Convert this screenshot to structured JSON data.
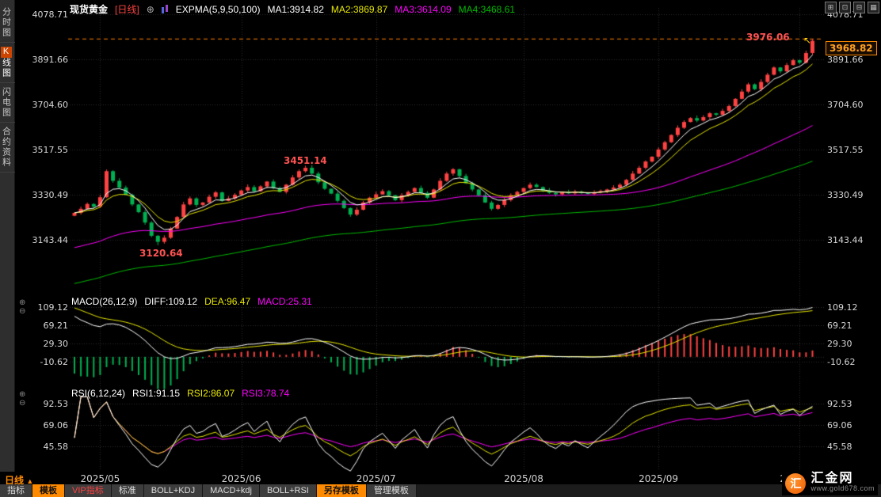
{
  "header": {
    "symbol": "现货黄金",
    "period": "[日线]",
    "plus_icon": "⊕",
    "indicator": "EXPMA(5,9,50,100)",
    "ma1": "MA1:3914.82",
    "ma2": "MA2:3869.87",
    "ma3": "MA3:3614.09",
    "ma4": "MA4:3468.61",
    "window_icons": [
      {
        "name": "grid-layout-icon",
        "glyph": "⊞"
      },
      {
        "name": "split-layout-icon",
        "glyph": "⊡"
      },
      {
        "name": "compress-panels-icon",
        "glyph": "⊟"
      },
      {
        "name": "panel-list-icon",
        "glyph": "▦"
      }
    ]
  },
  "sidebar": {
    "items": [
      {
        "label": "分时图",
        "active": false
      },
      {
        "label": "K线图",
        "prefix": "K",
        "rest": "线图",
        "active": true
      },
      {
        "label": "闪电图",
        "active": false
      },
      {
        "label": "合约资料",
        "active": false
      }
    ]
  },
  "macd_header": {
    "title": "MACD(26,12,9)",
    "diff": "DIFF:109.12",
    "dea": "DEA:96.47",
    "macd": "MACD:25.31",
    "zoom_in": "⊕",
    "zoom_out": "⊖"
  },
  "rsi_header": {
    "title": "RSI(6,12,24)",
    "rsi1": "RSI1:91.15",
    "rsi2": "RSI2:86.07",
    "rsi3": "RSI3:78.74",
    "zoom_in": "⊕",
    "zoom_out": "⊖"
  },
  "axis": {
    "price_labels": [
      "4078.71",
      "3891.66",
      "3704.60",
      "3517.55",
      "3330.49",
      "3143.44"
    ],
    "macd_labels": [
      "109.12",
      "69.21",
      "29.30",
      "-10.62"
    ],
    "rsi_labels": [
      "92.53",
      "69.06",
      "45.58"
    ]
  },
  "annotations": {
    "session_high": "3976.06",
    "last_price": "3968.82",
    "june_high": "3451.14",
    "may_low": "3120.64",
    "marker": "↖"
  },
  "xaxis_row": {
    "period_label": "日线",
    "arrow": "▲"
  },
  "toolbar": {
    "tabs": [
      {
        "label": "指标",
        "style": "plain"
      },
      {
        "label": "模板",
        "style": "active"
      },
      {
        "label": "VIP指标",
        "style": "vip"
      },
      {
        "label": "标准",
        "style": "plain"
      },
      {
        "label": "BOLL+KDJ",
        "style": "plain"
      },
      {
        "label": "MACD+kdj",
        "style": "plain"
      },
      {
        "label": "BOLL+RSI",
        "style": "plain"
      },
      {
        "label": "另存模板",
        "style": "save"
      },
      {
        "label": "管理模板",
        "style": "plain"
      }
    ]
  },
  "branding": {
    "logo_char": "汇",
    "name": "汇金网",
    "url": "www.gold678.com"
  },
  "colors": {
    "up": "#ff4242",
    "down": "#00b050",
    "ma1": "#ffffff",
    "ma2": "#e8e800",
    "ma3": "#ff00ff",
    "ma4": "#00bb00",
    "accent": "#ff8a00",
    "annotation": "#ff5252",
    "dashed_line": "#ff7e00",
    "grid": "#2c2c2c"
  },
  "chart_data": {
    "type": "candlestick",
    "symbol": "现货黄金",
    "period": "日线",
    "panels": [
      "price+EXPMA(5,9,50,100)",
      "MACD(26,12,9)",
      "RSI(6,12,24)"
    ],
    "x_axis": {
      "labels": [
        "2025/05",
        "2025/06",
        "2025/07",
        "2025/08",
        "2025/09",
        "2025/10"
      ],
      "month_start_index": [
        4,
        26,
        47,
        70,
        91,
        113
      ]
    },
    "y_ticks": [
      4078.71,
      3891.66,
      3704.6,
      3517.55,
      3330.49,
      3143.44
    ],
    "macd_ticks": [
      109.12,
      69.21,
      29.3,
      -10.62
    ],
    "rsi_ticks": [
      92.53,
      69.06,
      45.58
    ],
    "expma_periods": [
      5,
      9,
      50,
      100
    ],
    "macd_params": [
      26,
      12,
      9
    ],
    "rsi_params": [
      6,
      12,
      24
    ],
    "closes": [
      3255,
      3272,
      3292,
      3281,
      3320,
      3428,
      3388,
      3360,
      3330,
      3290,
      3258,
      3215,
      3160,
      3135,
      3152,
      3190,
      3238,
      3290,
      3315,
      3288,
      3298,
      3322,
      3340,
      3305,
      3315,
      3330,
      3348,
      3362,
      3345,
      3365,
      3385,
      3358,
      3342,
      3372,
      3402,
      3428,
      3442,
      3418,
      3382,
      3355,
      3335,
      3305,
      3275,
      3248,
      3268,
      3298,
      3318,
      3332,
      3345,
      3328,
      3308,
      3328,
      3342,
      3358,
      3338,
      3318,
      3352,
      3388,
      3418,
      3436,
      3408,
      3378,
      3352,
      3328,
      3298,
      3272,
      3288,
      3308,
      3328,
      3342,
      3358,
      3372,
      3362,
      3348,
      3338,
      3332,
      3340,
      3336,
      3343,
      3338,
      3334,
      3340,
      3346,
      3352,
      3360,
      3372,
      3392,
      3418,
      3442,
      3468,
      3488,
      3518,
      3548,
      3578,
      3608,
      3632,
      3648,
      3638,
      3652,
      3668,
      3662,
      3678,
      3698,
      3728,
      3758,
      3788,
      3768,
      3798,
      3828,
      3858,
      3842,
      3868,
      3888,
      3878,
      3918,
      3968.82
    ],
    "candle_overrides": {
      "13": {
        "low": 3120.64
      },
      "36": {
        "high": 3451.14
      },
      "115": {
        "high": 3976.06
      }
    },
    "indicator_seeds": {
      "ema50": 3105,
      "ema100": 2956,
      "ema12": 3300,
      "ema26": 3200,
      "dea": 112
    },
    "key_values": {
      "last_close": 3968.82,
      "session_high": 3976.06,
      "swing_high": 3451.14,
      "swing_low": 3120.64,
      "ema5": 3914.82,
      "ema9": 3869.87,
      "ema50": 3614.09,
      "ema100": 3468.61,
      "diff": 109.12,
      "dea": 96.47,
      "macd": 25.31,
      "rsi1": 91.15,
      "rsi2": 86.07,
      "rsi3": 78.74
    }
  }
}
